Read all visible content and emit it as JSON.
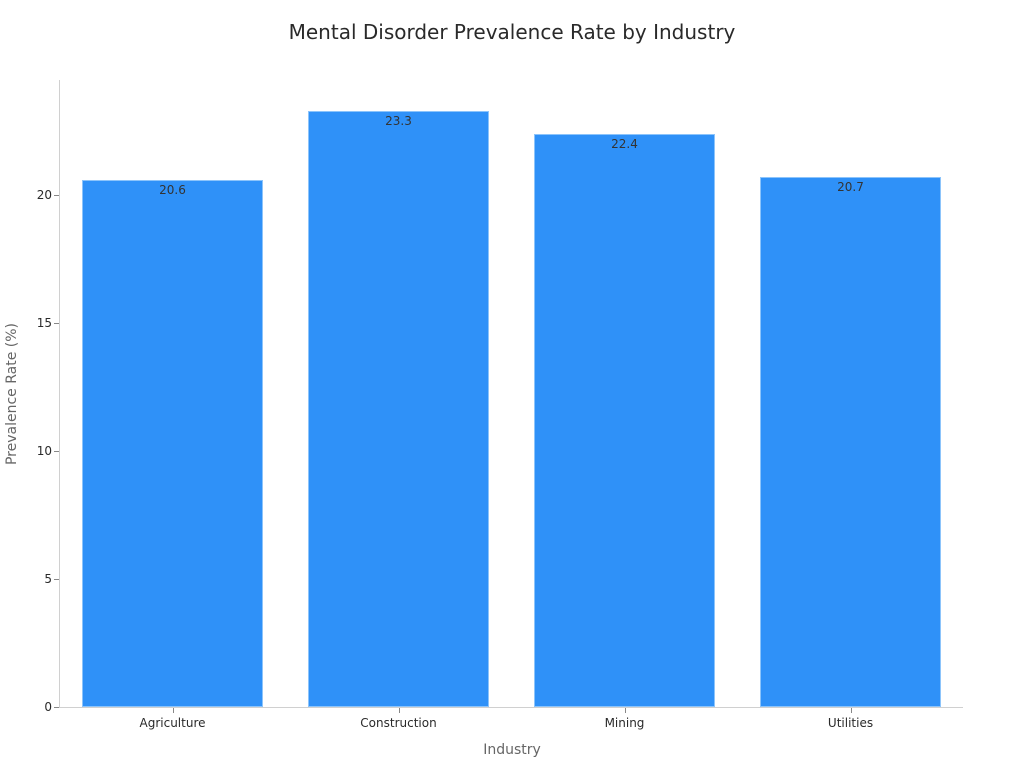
{
  "chart_data": {
    "type": "bar",
    "title": "Mental Disorder Prevalence Rate by Industry",
    "xlabel": "Industry",
    "ylabel": "Prevalence Rate (%)",
    "categories": [
      "Agriculture",
      "Construction",
      "Mining",
      "Utilities"
    ],
    "values": [
      20.6,
      23.3,
      22.4,
      20.7
    ],
    "value_labels": [
      "20.6",
      "23.3",
      "22.4",
      "20.7"
    ],
    "yticks": [
      "0",
      "5",
      "10",
      "15",
      "20"
    ],
    "ylim": [
      0,
      24.5
    ],
    "grid": false,
    "legend": "none",
    "bar_color": "#2f91f8"
  }
}
